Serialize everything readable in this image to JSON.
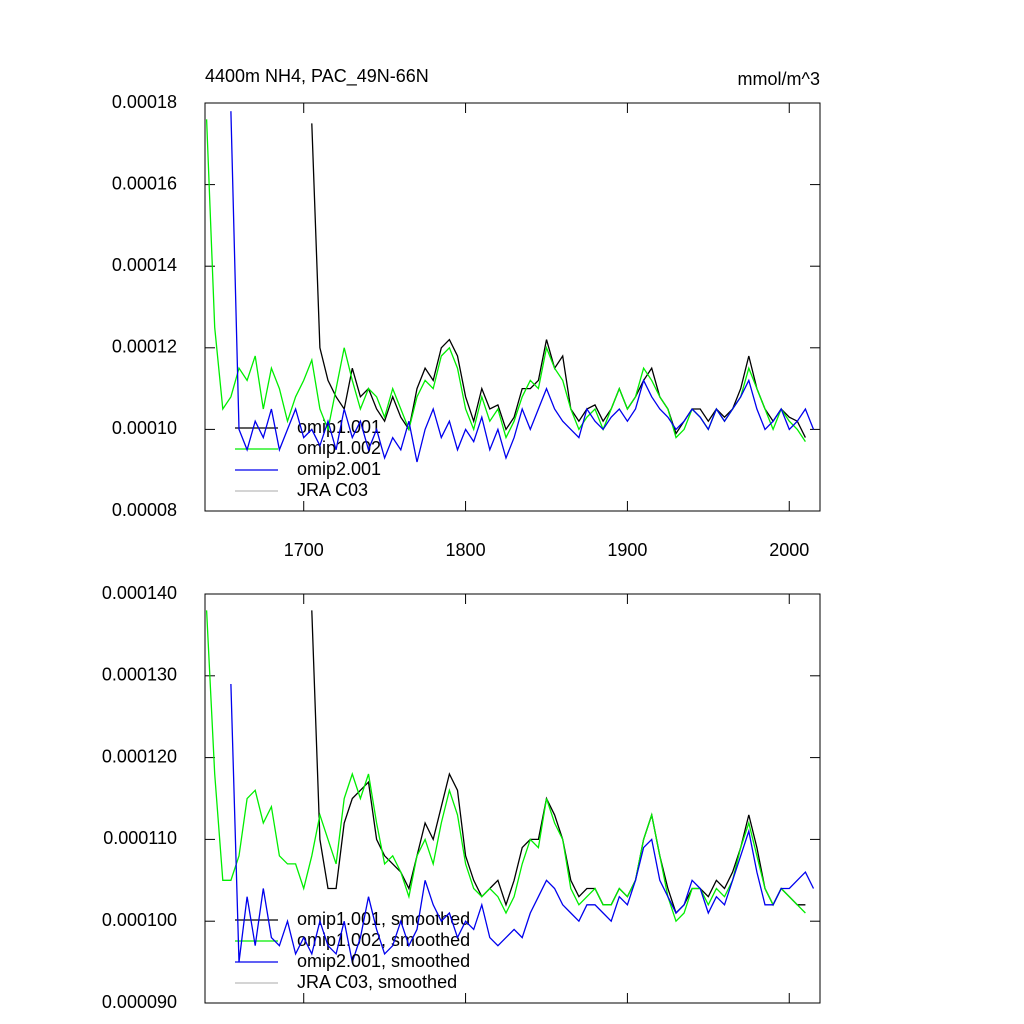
{
  "chart_data": [
    {
      "type": "line",
      "title": "4400m NH4, PAC_49N-66N",
      "units": "mmol/m^3",
      "xlim": [
        1639,
        2019
      ],
      "xticks": [
        1700,
        1800,
        1900,
        2000
      ],
      "show_xtick_labels": true,
      "ylim": [
        8e-05,
        0.00018
      ],
      "yticks": [
        {
          "value": 8e-05,
          "label": "0.00008"
        },
        {
          "value": 0.0001,
          "label": "0.00010"
        },
        {
          "value": 0.00012,
          "label": "0.00012"
        },
        {
          "value": 0.00014,
          "label": "0.00014"
        },
        {
          "value": 0.00016,
          "label": "0.00016"
        },
        {
          "value": 0.00018,
          "label": "0.00018"
        }
      ],
      "x": [
        1640,
        1645,
        1650,
        1655,
        1660,
        1665,
        1670,
        1675,
        1680,
        1685,
        1690,
        1695,
        1700,
        1705,
        1710,
        1715,
        1720,
        1725,
        1730,
        1735,
        1740,
        1745,
        1750,
        1755,
        1760,
        1765,
        1770,
        1775,
        1780,
        1785,
        1790,
        1795,
        1800,
        1805,
        1810,
        1815,
        1820,
        1825,
        1830,
        1835,
        1840,
        1845,
        1850,
        1855,
        1860,
        1865,
        1870,
        1875,
        1880,
        1885,
        1890,
        1895,
        1900,
        1905,
        1910,
        1915,
        1920,
        1925,
        1930,
        1935,
        1940,
        1945,
        1950,
        1955,
        1960,
        1965,
        1970,
        1975,
        1980,
        1985,
        1990,
        1995,
        2000,
        2005,
        2010,
        2015
      ],
      "series": [
        {
          "name": "omip1.001",
          "color": "#000000",
          "values": [
            null,
            null,
            null,
            null,
            null,
            null,
            null,
            null,
            null,
            null,
            null,
            null,
            null,
            0.000175,
            0.00012,
            0.000112,
            0.000108,
            0.000105,
            0.000115,
            0.000108,
            0.00011,
            0.000105,
            0.000102,
            0.000108,
            0.000103,
            0.0001,
            0.00011,
            0.000115,
            0.000112,
            0.00012,
            0.000122,
            0.000118,
            0.000108,
            0.000102,
            0.00011,
            0.000105,
            0.000106,
            0.0001,
            0.000103,
            0.00011,
            0.00011,
            0.000112,
            0.000122,
            0.000115,
            0.000118,
            0.000105,
            0.000102,
            0.000105,
            0.000106,
            0.000102,
            0.000105,
            0.00011,
            0.000105,
            0.000108,
            0.000112,
            0.000115,
            0.000108,
            0.000105,
            9.9e-05,
            0.000102,
            0.000105,
            0.000105,
            0.000102,
            0.000105,
            0.000103,
            0.000105,
            0.00011,
            0.000118,
            0.00011,
            0.000105,
            0.000102,
            0.000105,
            0.000103,
            0.000102,
            9.8e-05,
            null
          ]
        },
        {
          "name": "omip1.002",
          "color": "#00ee00",
          "values": [
            0.000176,
            0.000125,
            0.000105,
            0.000108,
            0.000115,
            0.000112,
            0.000118,
            0.000105,
            0.000115,
            0.00011,
            0.000102,
            0.000108,
            0.000112,
            0.000117,
            0.000105,
            0.0001,
            0.00011,
            0.00012,
            0.000112,
            0.000105,
            0.00011,
            0.000108,
            0.000103,
            0.00011,
            0.000105,
            0.0001,
            0.000108,
            0.000112,
            0.00011,
            0.000118,
            0.00012,
            0.000115,
            0.000105,
            0.0001,
            0.000108,
            0.000102,
            0.000105,
            9.8e-05,
            0.000102,
            0.000108,
            0.000112,
            0.00011,
            0.00012,
            0.000115,
            0.000112,
            0.000105,
            0.0001,
            0.000103,
            0.000105,
            0.0001,
            0.000105,
            0.00011,
            0.000105,
            0.000108,
            0.000115,
            0.000112,
            0.000108,
            0.000105,
            9.8e-05,
            0.0001,
            0.000105,
            0.000103,
            0.0001,
            0.000105,
            0.000102,
            0.000105,
            0.000108,
            0.000115,
            0.00011,
            0.000105,
            0.0001,
            0.000105,
            0.000102,
            0.0001,
            9.7e-05,
            null
          ]
        },
        {
          "name": "omip2.001",
          "color": "#0000ee",
          "values": [
            null,
            null,
            null,
            0.000178,
            0.0001,
            9.5e-05,
            0.000102,
            9.8e-05,
            0.000105,
            9.5e-05,
            0.0001,
            0.000105,
            9.8e-05,
            0.0001,
            9.6e-05,
            0.000102,
            9.5e-05,
            0.000105,
            9.8e-05,
            0.000102,
            9.5e-05,
            0.0001,
            9.3e-05,
            9.8e-05,
            9.5e-05,
            0.000102,
            9.2e-05,
            0.0001,
            0.000105,
            9.8e-05,
            0.000102,
            9.5e-05,
            0.0001,
            9.7e-05,
            0.000103,
            9.5e-05,
            0.0001,
            9.3e-05,
            9.8e-05,
            0.000105,
            0.0001,
            0.000105,
            0.00011,
            0.000105,
            0.000102,
            0.0001,
            9.8e-05,
            0.000105,
            0.000102,
            0.0001,
            0.000103,
            0.000105,
            0.000102,
            0.000105,
            0.000112,
            0.000108,
            0.000105,
            0.000103,
            0.0001,
            0.000102,
            0.000105,
            0.000103,
            0.0001,
            0.000105,
            0.000102,
            0.000105,
            0.000108,
            0.000112,
            0.000105,
            0.0001,
            0.000102,
            0.000105,
            0.0001,
            0.000102,
            0.000105,
            0.0001
          ]
        },
        {
          "name": "JRA C03",
          "color": "#bbbbbb",
          "values": [
            null,
            null,
            null,
            null,
            null,
            null,
            null,
            null,
            null,
            null,
            null,
            null,
            null,
            null,
            null,
            null,
            null,
            null,
            null,
            null,
            null,
            null,
            null,
            null,
            null,
            null,
            null,
            null,
            null,
            null,
            null,
            null,
            null,
            null,
            null,
            null,
            null,
            null,
            null,
            null,
            null,
            null,
            null,
            null,
            null,
            null,
            null,
            null,
            null,
            null,
            null,
            null,
            null,
            null,
            null,
            null,
            null,
            null,
            null,
            null,
            null,
            null,
            null,
            null,
            null,
            null,
            null,
            null,
            null,
            null,
            null,
            null,
            null,
            null,
            null,
            null
          ]
        }
      ]
    },
    {
      "type": "line",
      "xlim": [
        1639,
        2019
      ],
      "xticks": [
        1700,
        1800,
        1900,
        2000
      ],
      "show_xtick_labels": false,
      "ylim": [
        9e-05,
        0.00014
      ],
      "yticks": [
        {
          "value": 9e-05,
          "label": "0.000090"
        },
        {
          "value": 0.0001,
          "label": "0.000100"
        },
        {
          "value": 0.00011,
          "label": "0.000110"
        },
        {
          "value": 0.00012,
          "label": "0.000120"
        },
        {
          "value": 0.00013,
          "label": "0.000130"
        },
        {
          "value": 0.00014,
          "label": "0.000140"
        }
      ],
      "x": [
        1640,
        1645,
        1650,
        1655,
        1660,
        1665,
        1670,
        1675,
        1680,
        1685,
        1690,
        1695,
        1700,
        1705,
        1710,
        1715,
        1720,
        1725,
        1730,
        1735,
        1740,
        1745,
        1750,
        1755,
        1760,
        1765,
        1770,
        1775,
        1780,
        1785,
        1790,
        1795,
        1800,
        1805,
        1810,
        1815,
        1820,
        1825,
        1830,
        1835,
        1840,
        1845,
        1850,
        1855,
        1860,
        1865,
        1870,
        1875,
        1880,
        1885,
        1890,
        1895,
        1900,
        1905,
        1910,
        1915,
        1920,
        1925,
        1930,
        1935,
        1940,
        1945,
        1950,
        1955,
        1960,
        1965,
        1970,
        1975,
        1980,
        1985,
        1990,
        1995,
        2000,
        2005,
        2010,
        2015
      ],
      "series": [
        {
          "name": "omip1.001, smoothed",
          "color": "#000000",
          "values": [
            null,
            null,
            null,
            null,
            null,
            null,
            null,
            null,
            null,
            null,
            null,
            null,
            null,
            0.000138,
            0.00011,
            0.000104,
            0.000104,
            0.000112,
            0.000115,
            0.000116,
            0.000117,
            0.00011,
            0.000108,
            0.000107,
            0.000106,
            0.000104,
            0.000108,
            0.000112,
            0.00011,
            0.000114,
            0.000118,
            0.000116,
            0.000108,
            0.000105,
            0.000103,
            0.000104,
            0.000105,
            0.000102,
            0.000105,
            0.000109,
            0.00011,
            0.00011,
            0.000115,
            0.000113,
            0.00011,
            0.000105,
            0.000103,
            0.000104,
            0.000104,
            0.000102,
            0.000102,
            0.000104,
            0.000103,
            0.000105,
            0.00011,
            0.000113,
            0.000108,
            0.000104,
            0.000101,
            0.000102,
            0.000104,
            0.000104,
            0.000103,
            0.000105,
            0.000104,
            0.000106,
            0.000109,
            0.000113,
            0.000109,
            0.000104,
            0.000102,
            0.000104,
            0.000103,
            0.000102,
            0.000102,
            null
          ]
        },
        {
          "name": "omip1.002, smoothed",
          "color": "#00ee00",
          "values": [
            0.000138,
            0.000118,
            0.000105,
            0.000105,
            0.000108,
            0.000115,
            0.000116,
            0.000112,
            0.000114,
            0.000108,
            0.000107,
            0.000107,
            0.000104,
            0.000108,
            0.000113,
            0.00011,
            0.000107,
            0.000115,
            0.000118,
            0.000115,
            0.000118,
            0.000112,
            0.000107,
            0.000108,
            0.000106,
            0.000103,
            0.000108,
            0.00011,
            0.000107,
            0.000112,
            0.000116,
            0.000113,
            0.000107,
            0.000104,
            0.000103,
            0.000104,
            0.000103,
            0.000101,
            0.000103,
            0.000107,
            0.00011,
            0.000109,
            0.000115,
            0.000112,
            0.00011,
            0.000104,
            0.000102,
            0.000103,
            0.000104,
            0.000102,
            0.000102,
            0.000104,
            0.000103,
            0.000105,
            0.00011,
            0.000113,
            0.000108,
            0.000103,
            0.0001,
            0.000101,
            0.000104,
            0.000104,
            0.000102,
            0.000104,
            0.000103,
            0.000105,
            0.000109,
            0.000112,
            0.000108,
            0.000104,
            0.000102,
            0.000104,
            0.000103,
            0.000102,
            0.000101,
            null
          ]
        },
        {
          "name": "omip2.001, smoothed",
          "color": "#0000ee",
          "values": [
            null,
            null,
            null,
            0.000129,
            9.5e-05,
            0.000103,
            9.7e-05,
            0.000104,
            9.8e-05,
            9.7e-05,
            0.0001,
            9.6e-05,
            9.8e-05,
            9.6e-05,
            0.0001,
            9.7e-05,
            9.6e-05,
            0.0001,
            9.5e-05,
            9.8e-05,
            0.000103,
            9.9e-05,
            9.6e-05,
            9.7e-05,
            0.0001,
            9.7e-05,
            9.9e-05,
            0.000105,
            0.000102,
            0.0001,
            0.000101,
            9.8e-05,
            0.0001,
            9.9e-05,
            0.000102,
            9.8e-05,
            9.7e-05,
            9.8e-05,
            9.9e-05,
            9.8e-05,
            0.000101,
            0.000103,
            0.000105,
            0.000104,
            0.000102,
            0.000101,
            0.0001,
            0.000102,
            0.000102,
            0.000101,
            0.0001,
            0.000103,
            0.000102,
            0.000105,
            0.000109,
            0.00011,
            0.000105,
            0.000103,
            0.000101,
            0.000102,
            0.000105,
            0.000104,
            0.000101,
            0.000103,
            0.000102,
            0.000105,
            0.000108,
            0.000111,
            0.000106,
            0.000102,
            0.000102,
            0.000104,
            0.000104,
            0.000105,
            0.000106,
            0.000104
          ]
        },
        {
          "name": "JRA C03, smoothed",
          "color": "#bbbbbb",
          "values": [
            null,
            null,
            null,
            null,
            null,
            null,
            null,
            null,
            null,
            null,
            null,
            null,
            null,
            null,
            null,
            null,
            null,
            null,
            null,
            null,
            null,
            null,
            null,
            null,
            null,
            null,
            null,
            null,
            null,
            null,
            null,
            null,
            null,
            null,
            null,
            null,
            null,
            null,
            null,
            null,
            null,
            null,
            null,
            null,
            null,
            null,
            null,
            null,
            null,
            null,
            null,
            null,
            null,
            null,
            null,
            null,
            null,
            null,
            null,
            null,
            null,
            null,
            null,
            null,
            null,
            null,
            null,
            null,
            null,
            null,
            null,
            null,
            null,
            null,
            null,
            null
          ]
        }
      ]
    }
  ]
}
